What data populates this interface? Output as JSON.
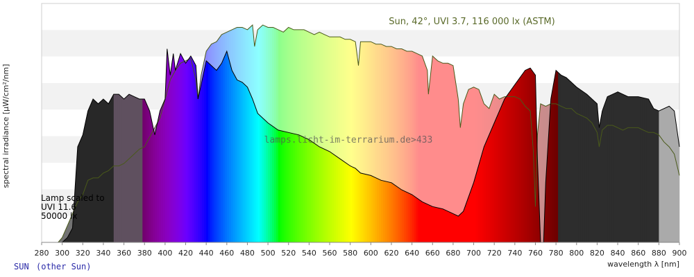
{
  "chart_data": {
    "type": "area",
    "title": "Sun, 42°, UVI 3.7, 116 000 lx (ASTM)",
    "xlabel": "wavelength λ [nm]",
    "ylabel": "spectral irradiance [µW/cm²/nm]",
    "xlim": [
      280,
      900
    ],
    "ylim": [
      0,
      100
    ],
    "x_ticks": [
      280,
      300,
      320,
      340,
      360,
      380,
      400,
      420,
      440,
      460,
      480,
      500,
      520,
      540,
      560,
      580,
      600,
      620,
      640,
      660,
      680,
      700,
      720,
      740,
      760,
      780,
      800,
      820,
      840,
      860,
      880,
      900
    ],
    "grid": "horizontal bands",
    "lamp_annotation": [
      "Lamp scaled to",
      "UVI 11.6",
      "50000 lx"
    ],
    "watermark": "lamps.licht-im-terrarium.de>433",
    "footer_left": "SUN",
    "footer_right": "(other Sun)",
    "series": [
      {
        "name": "Sun",
        "x": [
          296,
          300,
          305,
          310,
          315,
          320,
          325,
          330,
          335,
          340,
          345,
          350,
          355,
          360,
          365,
          370,
          375,
          380,
          385,
          390,
          395,
          400,
          405,
          410,
          415,
          420,
          425,
          430,
          432,
          435,
          440,
          445,
          450,
          455,
          460,
          465,
          470,
          475,
          480,
          485,
          487,
          490,
          495,
          500,
          505,
          510,
          515,
          520,
          525,
          530,
          535,
          540,
          545,
          550,
          555,
          560,
          565,
          570,
          575,
          580,
          585,
          588,
          590,
          595,
          600,
          605,
          610,
          615,
          620,
          625,
          630,
          635,
          640,
          645,
          650,
          655,
          656,
          660,
          665,
          670,
          675,
          680,
          685,
          687,
          690,
          695,
          700,
          705,
          710,
          715,
          720,
          725,
          730,
          735,
          740,
          745,
          750,
          755,
          758,
          760,
          762,
          765,
          770,
          775,
          780,
          785,
          790,
          795,
          800,
          805,
          810,
          815,
          820,
          822,
          825,
          830,
          835,
          840,
          845,
          850,
          855,
          860,
          865,
          870,
          875,
          880,
          885,
          890,
          895,
          900
        ],
        "y": [
          0,
          2,
          7,
          12,
          17,
          20,
          26,
          27,
          27,
          29,
          30,
          32,
          32,
          33,
          35,
          37,
          39,
          40,
          44,
          48,
          52,
          60,
          68,
          72,
          75,
          76,
          77,
          68,
          60,
          70,
          80,
          83,
          84,
          87,
          88,
          89,
          90,
          90,
          89,
          91,
          82,
          89,
          91,
          90,
          90,
          89,
          88,
          90,
          89,
          89,
          89,
          88,
          87,
          88,
          87,
          86,
          86,
          86,
          85,
          85,
          84,
          74,
          84,
          84,
          84,
          83,
          83,
          82,
          82,
          81,
          81,
          80,
          80,
          79,
          78,
          72,
          62,
          78,
          76,
          75,
          75,
          74,
          60,
          48,
          58,
          64,
          65,
          64,
          58,
          56,
          62,
          60,
          61,
          61,
          61,
          60,
          57,
          55,
          38,
          15,
          45,
          58,
          57,
          58,
          58,
          57,
          56,
          56,
          54,
          53,
          52,
          50,
          46,
          40,
          47,
          49,
          49,
          48,
          47,
          48,
          48,
          48,
          47,
          46,
          46,
          45,
          42,
          40,
          37,
          28
        ]
      },
      {
        "name": "Lamp",
        "x": [
          300,
          305,
          310,
          315,
          320,
          325,
          330,
          335,
          340,
          345,
          350,
          355,
          360,
          365,
          370,
          375,
          380,
          385,
          390,
          395,
          400,
          402,
          405,
          408,
          410,
          415,
          420,
          425,
          430,
          432,
          435,
          440,
          445,
          450,
          455,
          460,
          465,
          470,
          475,
          480,
          485,
          490,
          495,
          500,
          510,
          520,
          530,
          540,
          550,
          560,
          570,
          580,
          585,
          590,
          600,
          610,
          620,
          630,
          640,
          650,
          660,
          670,
          680,
          685,
          690,
          700,
          710,
          720,
          730,
          740,
          750,
          755,
          760,
          762,
          765,
          768,
          770,
          775,
          780,
          785,
          790,
          800,
          810,
          820,
          822,
          825,
          830,
          840,
          850,
          860,
          870,
          875,
          880,
          890,
          895,
          900
        ],
        "y": [
          0,
          2,
          6,
          40,
          45,
          55,
          60,
          58,
          60,
          58,
          62,
          62,
          60,
          62,
          61,
          60,
          60,
          55,
          45,
          55,
          60,
          81,
          70,
          79,
          72,
          79,
          75,
          78,
          74,
          60,
          66,
          76,
          74,
          72,
          75,
          80,
          72,
          68,
          67,
          65,
          60,
          54,
          52,
          50,
          47,
          46,
          45,
          43,
          40,
          38,
          35,
          32,
          31,
          29,
          28,
          26,
          25,
          22,
          20,
          17,
          15,
          14,
          12,
          11,
          13,
          25,
          40,
          50,
          60,
          66,
          72,
          73,
          70,
          35,
          0,
          0,
          25,
          60,
          72,
          70,
          69,
          65,
          62,
          58,
          48,
          55,
          61,
          63,
          61,
          61,
          60,
          56,
          55,
          57,
          55,
          40
        ]
      }
    ]
  }
}
